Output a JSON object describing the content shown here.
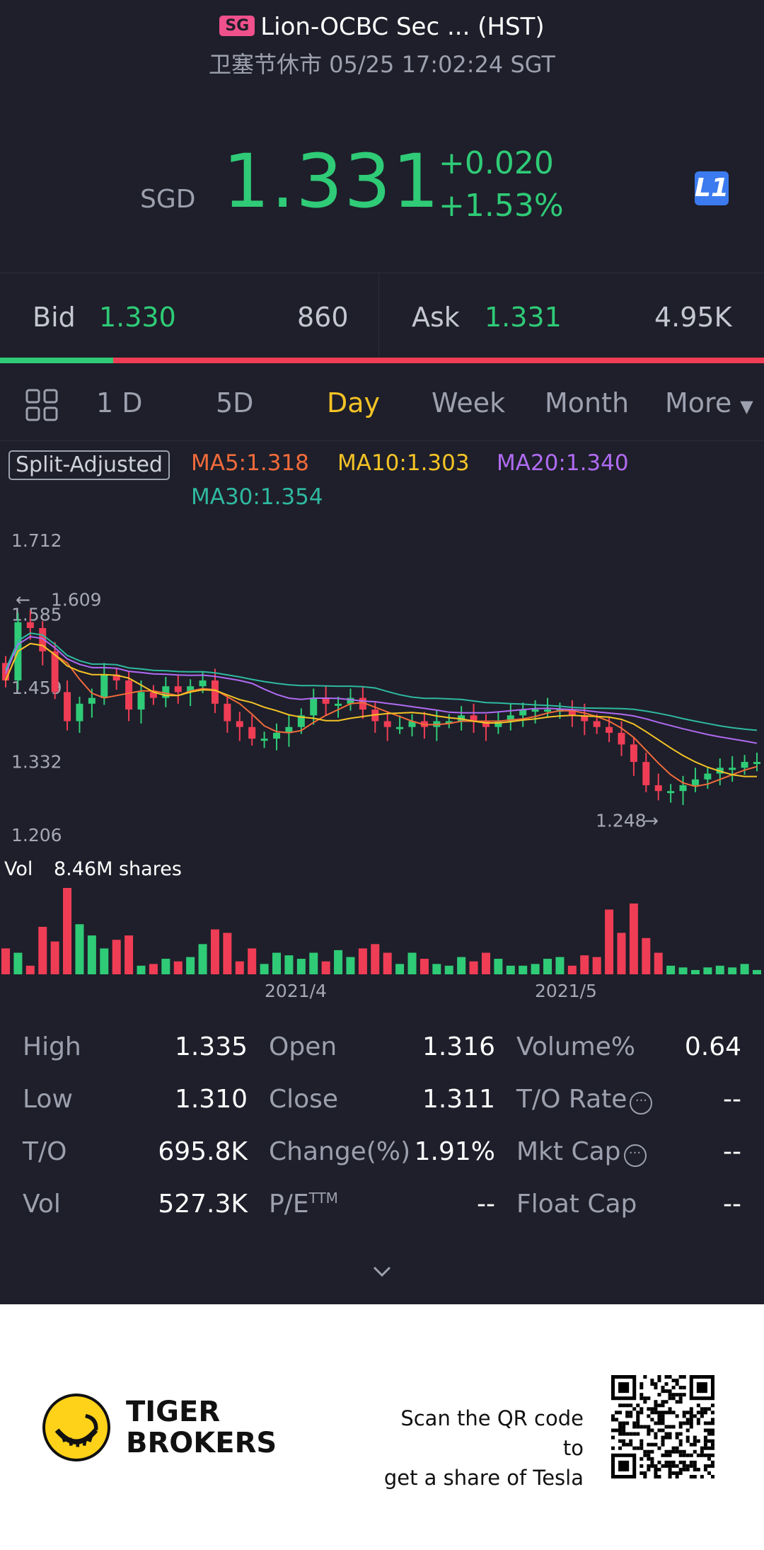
{
  "header": {
    "market_badge": "SG",
    "stock_name": "Lion-OCBC Sec ... (HST)",
    "status_line": "卫塞节休市 05/25 17:02:24 SGT",
    "currency": "SGD",
    "price": "1.331",
    "change_abs": "+0.020",
    "change_pct": "+1.53%",
    "level_badge": "L1"
  },
  "quote": {
    "bid_label": "Bid",
    "bid_price": "1.330",
    "bid_size": "860",
    "ask_label": "Ask",
    "ask_price": "1.331",
    "ask_size": "4.95K",
    "bid_ratio": 0.148
  },
  "periods": {
    "items": [
      "1 D",
      "5D",
      "Day",
      "Week",
      "Month",
      "More"
    ],
    "active": "Day"
  },
  "indicators": {
    "split_label": "Split-Adjusted",
    "ma5": "MA5:1.318",
    "ma10": "MA10:1.303",
    "ma20": "MA20:1.340",
    "ma30": "MA30:1.354"
  },
  "colors": {
    "up": "#2fcb77",
    "down": "#ef3d55",
    "accent": "#f5c326",
    "ma5": "#f26b3a",
    "ma10": "#f5c326",
    "ma20": "#b06bf2",
    "ma30": "#2fb9a0"
  },
  "chart_data": {
    "type": "candlestick",
    "y_axis_ticks": [
      "1.712",
      "1.585",
      "1.459",
      "1.332",
      "1.206"
    ],
    "ylim": [
      1.206,
      1.712
    ],
    "high_marker": "1.609",
    "low_marker": "1.248",
    "x_axis_ticks": [
      "2021/4",
      "2021/5"
    ],
    "volume_label": "Vol",
    "volume_value": "8.46M shares",
    "closes": [
      1.47,
      1.57,
      1.56,
      1.52,
      1.45,
      1.4,
      1.43,
      1.44,
      1.48,
      1.47,
      1.42,
      1.45,
      1.44,
      1.46,
      1.45,
      1.46,
      1.47,
      1.43,
      1.4,
      1.39,
      1.37,
      1.37,
      1.38,
      1.39,
      1.41,
      1.44,
      1.43,
      1.43,
      1.44,
      1.42,
      1.4,
      1.39,
      1.39,
      1.4,
      1.39,
      1.4,
      1.4,
      1.41,
      1.4,
      1.39,
      1.4,
      1.41,
      1.42,
      1.42,
      1.42,
      1.42,
      1.41,
      1.4,
      1.39,
      1.38,
      1.36,
      1.33,
      1.29,
      1.28,
      1.28,
      1.29,
      1.3,
      1.31,
      1.32,
      1.32,
      1.33,
      1.33
    ],
    "volumes": [
      0.3,
      0.25,
      0.1,
      0.55,
      0.38,
      1.0,
      0.58,
      0.45,
      0.3,
      0.4,
      0.45,
      0.1,
      0.12,
      0.18,
      0.15,
      0.2,
      0.35,
      0.52,
      0.48,
      0.15,
      0.3,
      0.12,
      0.25,
      0.22,
      0.18,
      0.25,
      0.15,
      0.28,
      0.2,
      0.3,
      0.35,
      0.25,
      0.12,
      0.25,
      0.18,
      0.12,
      0.1,
      0.2,
      0.15,
      0.25,
      0.18,
      0.1,
      0.1,
      0.12,
      0.18,
      0.2,
      0.1,
      0.22,
      0.2,
      0.75,
      0.48,
      0.82,
      0.42,
      0.25,
      0.1,
      0.08,
      0.05,
      0.08,
      0.1,
      0.08,
      0.12,
      0.05
    ],
    "series_names": [
      "MA5",
      "MA10",
      "MA20",
      "MA30"
    ]
  },
  "stats": {
    "rows": [
      [
        {
          "label": "High",
          "value": "1.335"
        },
        {
          "label": "Open",
          "value": "1.316"
        },
        {
          "label": "Volume%",
          "value": "0.64"
        }
      ],
      [
        {
          "label": "Low",
          "value": "1.310"
        },
        {
          "label": "Close",
          "value": "1.311"
        },
        {
          "label": "T/O Rate",
          "value": "--"
        }
      ],
      [
        {
          "label": "T/O",
          "value": "695.8K"
        },
        {
          "label": "Change(%)",
          "value": "1.91%"
        },
        {
          "label": "Mkt Cap",
          "value": "--"
        }
      ],
      [
        {
          "label": "Vol",
          "value": "527.3K"
        },
        {
          "label": "P/E",
          "value": "--"
        },
        {
          "label": "Float Cap",
          "value": "--"
        }
      ]
    ],
    "pe_superscript": "TTM"
  },
  "footer": {
    "brand_line1": "TIGER",
    "brand_line2": "BROKERS",
    "scan_line1": "Scan the QR code to",
    "scan_line2": "get a share of Tesla"
  }
}
